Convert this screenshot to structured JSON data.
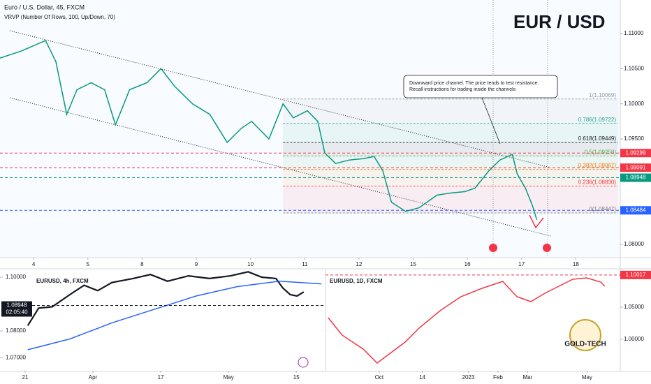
{
  "header": {
    "symbol": "Euro / U.S. Dollar, 45, FXCM",
    "indicator": "VRVP (Number Of Rows, 100, Up/Down, 70)",
    "pair": "EUR / USD"
  },
  "callout": {
    "lines": [
      "Downward price channel. The price tends to test resistance.",
      "Recall instructions for trading inside the channels"
    ]
  },
  "logo": "GOLD-TECH",
  "chart_data": [
    {
      "type": "line",
      "xlim": [
        -0.62,
        10.82
      ],
      "ylim": [
        1.07821,
        1.11477
      ],
      "xticks": [
        {
          "value": 0,
          "label": "4"
        },
        {
          "value": 1,
          "label": "5"
        },
        {
          "value": 2,
          "label": "8"
        },
        {
          "value": 3,
          "label": "9"
        },
        {
          "value": 4,
          "label": "10"
        },
        {
          "value": 5,
          "label": "11"
        },
        {
          "value": 6,
          "label": "12"
        },
        {
          "value": 7,
          "label": "15"
        },
        {
          "value": 8,
          "label": "16"
        },
        {
          "value": 9,
          "label": "17"
        },
        {
          "value": 10,
          "label": "18"
        }
      ],
      "yticks": [
        {
          "value": 1.08,
          "label": "1.08000"
        },
        {
          "value": 1.095,
          "label": "1.09500"
        },
        {
          "value": 1.1,
          "label": "1.10000"
        },
        {
          "value": 1.105,
          "label": "1.10500"
        },
        {
          "value": 1.11,
          "label": "1.11000"
        }
      ],
      "series": [
        {
          "color": "#089981",
          "x": [
            -0.62,
            -0.23,
            0.22,
            0.41,
            0.61,
            0.8,
            1.06,
            1.31,
            1.51,
            1.77,
            2.09,
            2.35,
            2.6,
            2.93,
            3.25,
            3.57,
            3.83,
            4.02,
            4.34,
            4.6,
            4.79,
            5.05,
            5.24,
            5.37,
            5.57,
            5.82,
            6.08,
            6.28,
            6.44,
            6.6,
            6.86,
            7.11,
            7.44,
            7.69,
            7.95,
            8.14,
            8.4,
            8.6,
            8.83,
            8.92,
            9.07,
            9.2,
            9.28
          ],
          "values": [
            1.1065,
            1.1075,
            1.109,
            1.106,
            1.0985,
            1.102,
            1.103,
            1.102,
            1.097,
            1.102,
            1.103,
            1.105,
            1.1025,
            1.1,
            1.0985,
            1.0945,
            1.0965,
            1.0975,
            1.095,
            1.1,
            1.098,
            1.099,
            1.0975,
            1.093,
            1.0915,
            1.092,
            1.0922,
            1.0925,
            1.0905,
            1.086,
            1.0847,
            1.0852,
            1.087,
            1.0873,
            1.0875,
            1.088,
            1.0905,
            1.092,
            1.0928,
            1.09,
            1.088,
            1.0855,
            1.0835
          ]
        }
      ],
      "fib_levels": [
        {
          "value": 1.10069,
          "label": "1(1.10069)",
          "color": "#9598a1"
        },
        {
          "value": 1.09722,
          "label": "0.786(1.09722)",
          "color": "#22ab94"
        },
        {
          "value": 1.09449,
          "label": "0.618(1.09449)",
          "color": "#131722"
        },
        {
          "value": 1.09258,
          "label": "0.5(1.09258)",
          "color": "#4caf50"
        },
        {
          "value": 1.09067,
          "label": "0.382(1.09067)",
          "color": "#f57c00"
        },
        {
          "value": 1.0883,
          "label": "0.236(1.08830)",
          "color": "#f23645"
        },
        {
          "value": 1.08447,
          "label": "0(1.08447)",
          "color": "#787b86"
        }
      ],
      "price_labels": [
        {
          "value": 1.09299,
          "label": "1.09299",
          "color": "#f23645"
        },
        {
          "value": 1.09091,
          "label": "1.09091",
          "color": "#f23645"
        },
        {
          "value": 1.08948,
          "label": "1.08948",
          "color": "#089981"
        },
        {
          "value": 1.08484,
          "label": "1.08484",
          "color": "#2962ff"
        }
      ]
    },
    {
      "type": "line",
      "title": "EURUSD, 4h, FXCM",
      "xlim": [
        -0.37,
        4.43
      ],
      "ylim": [
        1.06545,
        1.10286
      ],
      "xticks": [
        {
          "value": 0,
          "label": "21"
        },
        {
          "value": 1,
          "label": "Apr"
        },
        {
          "value": 2,
          "label": "17"
        },
        {
          "value": 3,
          "label": "May"
        },
        {
          "value": 4,
          "label": "15"
        }
      ],
      "yticks": [
        {
          "value": 1.07,
          "label": "1.07000"
        },
        {
          "value": 1.08,
          "label": "1.08000"
        },
        {
          "value": 1.1,
          "label": "1.10000"
        }
      ],
      "series": [
        {
          "color": "#131722",
          "x": [
            0.04,
            0.2,
            0.4,
            0.66,
            0.87,
            1.07,
            1.28,
            1.59,
            1.85,
            2.1,
            2.41,
            2.72,
            3.03,
            3.29,
            3.49,
            3.7,
            3.8,
            3.91,
            4.01,
            4.11
          ],
          "values": [
            1.082,
            1.0885,
            1.089,
            1.0935,
            1.097,
            1.095,
            1.098,
            1.0995,
            1.101,
            1.0985,
            1.1005,
            1.0995,
            1.1005,
            1.102,
            1.1,
            1.0995,
            1.096,
            1.0935,
            1.093,
            1.0945
          ]
        },
        {
          "color": "#2962ff",
          "x": [
            0.04,
            0.66,
            1.28,
            1.9,
            2.52,
            3.13,
            3.75,
            4.37
          ],
          "values": [
            1.073,
            1.077,
            1.083,
            1.088,
            1.093,
            1.0965,
            1.0985,
            1.0975
          ]
        }
      ],
      "price_labels": [
        {
          "value": 1.08948,
          "label": "1.08948",
          "sublabel": "02:05:40",
          "color": "#131722"
        }
      ]
    },
    {
      "type": "line",
      "title": "EURUSD, 1D, FXCM",
      "xlim": [
        -1.81,
        8.12
      ],
      "ylim": [
        0.95217,
        1.1087
      ],
      "xticks": [
        {
          "value": 0,
          "label": "Oct"
        },
        {
          "value": 1.45,
          "label": "14"
        },
        {
          "value": 3,
          "label": "2023"
        },
        {
          "value": 4,
          "label": "Feb"
        },
        {
          "value": 5,
          "label": "Mar"
        },
        {
          "value": 7,
          "label": "May"
        }
      ],
      "yticks": [
        {
          "value": 1.0,
          "label": "1.00000"
        },
        {
          "value": 1.05,
          "label": "1.05000"
        }
      ],
      "series": [
        {
          "color": "#f23645",
          "x": [
            -1.72,
            -1.25,
            -0.54,
            -0.07,
            0.4,
            0.87,
            1.34,
            2.05,
            2.75,
            3.46,
            4.16,
            4.64,
            5.11,
            5.58,
            6.05,
            6.52,
            6.99,
            7.46,
            7.6
          ],
          "values": [
            1.0337,
            1.0065,
            0.9848,
            0.963,
            0.9793,
            0.9957,
            1.0174,
            1.0446,
            1.0663,
            1.0793,
            1.0902,
            1.0663,
            1.0587,
            1.0717,
            1.0826,
            1.0935,
            1.0957,
            1.0891,
            1.0826
          ]
        }
      ],
      "price_labels": [
        {
          "value": 1.10017,
          "label": "1.10017",
          "color": "#f23645"
        }
      ]
    }
  ]
}
